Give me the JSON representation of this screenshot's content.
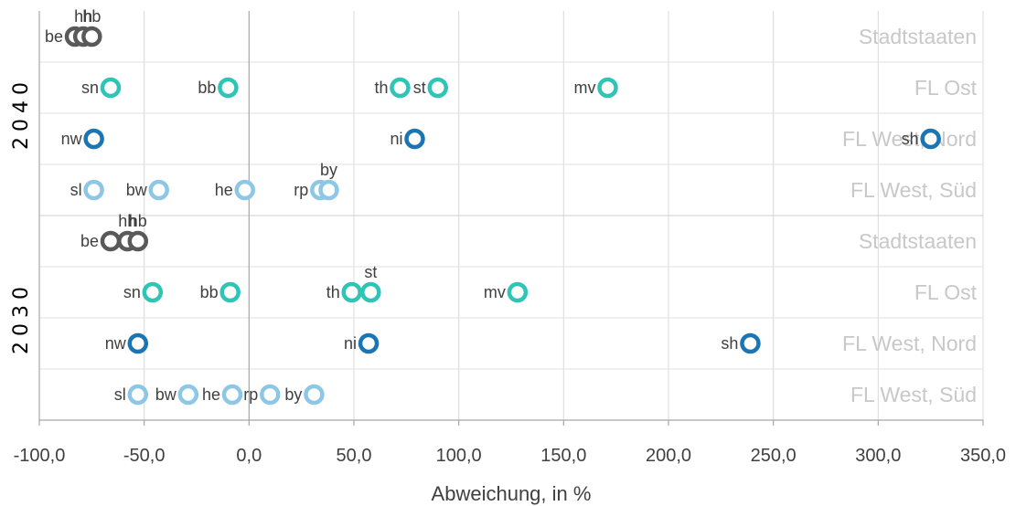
{
  "chart_data": {
    "type": "scatter",
    "xlabel": "Abweichung, in %",
    "xlim": [
      -100,
      350
    ],
    "x_ticks": [
      "-100,0",
      "-50,0",
      "0,0",
      "50,0",
      "100,0",
      "150,0",
      "200,0",
      "250,0",
      "300,0",
      "350,0"
    ],
    "x_tick_values": [
      -100,
      -50,
      0,
      50,
      100,
      150,
      200,
      250,
      300,
      350
    ],
    "grid": "vertical",
    "groups": [
      {
        "year": "2040",
        "rows": [
          {
            "category": "Stadtstaaten",
            "color": "#595959",
            "points": [
              {
                "label": "be",
                "x": -83
              },
              {
                "label": "hh",
                "x": -79
              },
              {
                "label": "hb",
                "x": -75
              }
            ]
          },
          {
            "category": "FL Ost",
            "color": "#2EC4B6",
            "points": [
              {
                "label": "sn",
                "x": -66
              },
              {
                "label": "bb",
                "x": -10
              },
              {
                "label": "th",
                "x": 72
              },
              {
                "label": "st",
                "x": 90
              },
              {
                "label": "mv",
                "x": 171
              }
            ]
          },
          {
            "category": "FL West, Nord",
            "color": "#1B75B3",
            "points": [
              {
                "label": "nw",
                "x": -74
              },
              {
                "label": "ni",
                "x": 79
              },
              {
                "label": "sh",
                "x": 325
              }
            ]
          },
          {
            "category": "FL West, Süd",
            "color": "#8EC6E6",
            "points": [
              {
                "label": "sl",
                "x": -74
              },
              {
                "label": "bw",
                "x": -43
              },
              {
                "label": "he",
                "x": -2
              },
              {
                "label": "rp",
                "x": 34
              },
              {
                "label": "by",
                "x": 38
              }
            ]
          }
        ]
      },
      {
        "year": "2030",
        "rows": [
          {
            "category": "Stadtstaaten",
            "color": "#595959",
            "points": [
              {
                "label": "be",
                "x": -66
              },
              {
                "label": "hh",
                "x": -58
              },
              {
                "label": "hb",
                "x": -53
              }
            ]
          },
          {
            "category": "FL Ost",
            "color": "#2EC4B6",
            "points": [
              {
                "label": "sn",
                "x": -46
              },
              {
                "label": "bb",
                "x": -9
              },
              {
                "label": "th",
                "x": 49
              },
              {
                "label": "st",
                "x": 58
              },
              {
                "label": "mv",
                "x": 128
              }
            ]
          },
          {
            "category": "FL West, Nord",
            "color": "#1B75B3",
            "points": [
              {
                "label": "nw",
                "x": -53
              },
              {
                "label": "ni",
                "x": 57
              },
              {
                "label": "sh",
                "x": 239
              }
            ]
          },
          {
            "category": "FL West, Süd",
            "color": "#8EC6E6",
            "points": [
              {
                "label": "sl",
                "x": -53
              },
              {
                "label": "bw",
                "x": -29
              },
              {
                "label": "he",
                "x": -8
              },
              {
                "label": "rp",
                "x": 10
              },
              {
                "label": "by",
                "x": 31
              }
            ]
          }
        ]
      }
    ]
  }
}
